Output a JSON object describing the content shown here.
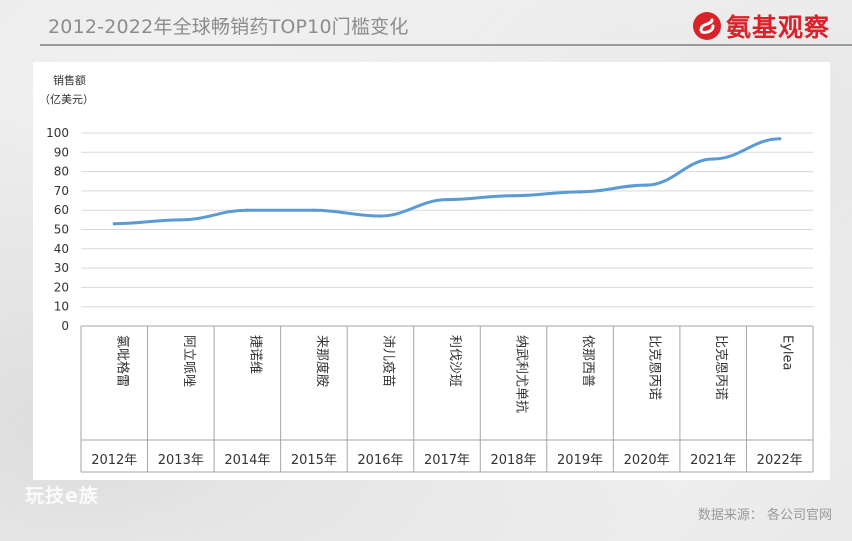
{
  "header": {
    "title": "2012-2022年全球畅销药TOP10门槛变化",
    "logo_text": "氨基观察"
  },
  "footer": {
    "source": "数据来源：  各公司官网",
    "watermark": "玩技e族"
  },
  "colors": {
    "line": "#5b9bd5",
    "grid": "#d9d9d9",
    "axis": "#a6a6a6",
    "logo": "#d8232a"
  },
  "chart_data": {
    "type": "line",
    "ylabel": "销售额",
    "ylabel_unit": "（亿美元）",
    "ylim": [
      0,
      100
    ],
    "yticks": [
      0,
      10,
      20,
      30,
      40,
      50,
      60,
      70,
      80,
      90,
      100
    ],
    "grid": true,
    "categories": [
      "2012年",
      "2013年",
      "2014年",
      "2015年",
      "2016年",
      "2017年",
      "2018年",
      "2019年",
      "2020年",
      "2021年",
      "2022年"
    ],
    "drugs": [
      "氯吡格雷",
      "阿立哌唑",
      "捷诺维",
      "来那度胺",
      "沛儿疫苗",
      "利伐沙班",
      "纳武利尤单抗",
      "依那西普",
      "比克恩丙诺",
      "比克恩丙诺",
      "Eylea"
    ],
    "values": [
      53,
      55,
      60,
      60,
      57,
      65.5,
      67.5,
      69.5,
      73,
      86.5,
      97
    ]
  }
}
